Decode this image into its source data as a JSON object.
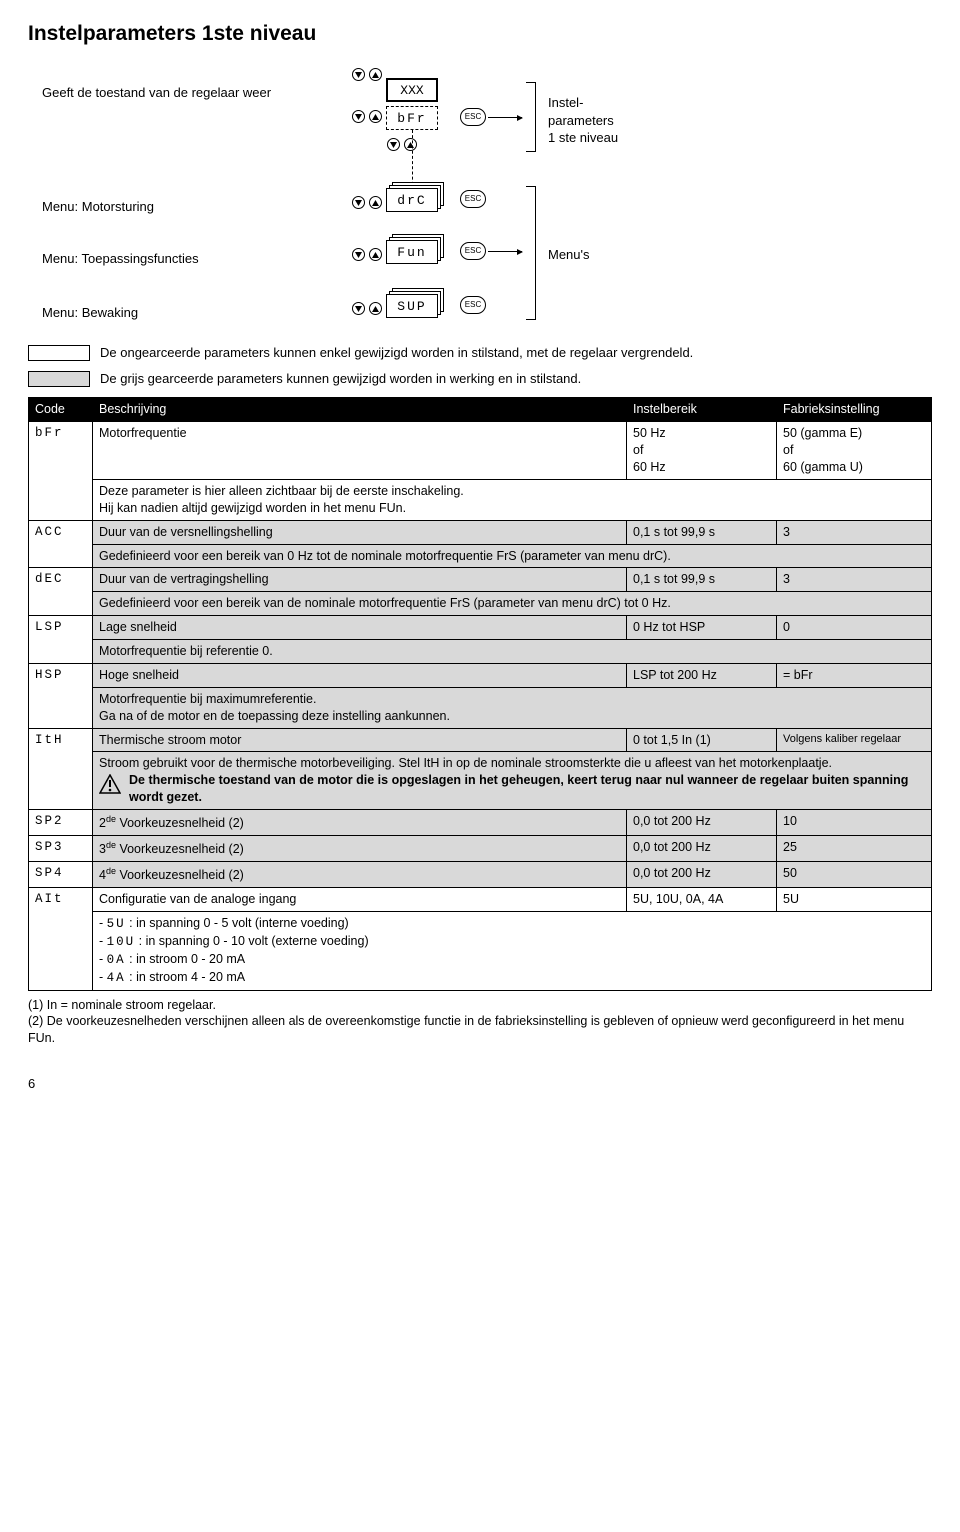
{
  "title": "Instelparameters 1ste niveau",
  "diagram": {
    "state_label": "Geeft de toestand van de regelaar weer",
    "xxx": "XXX",
    "bfr": "bFr",
    "menu_motor": "Menu: Motorsturing",
    "menu_app": "Menu: Toepassingsfuncties",
    "menu_mon": "Menu: Bewaking",
    "drc": "drC",
    "fun": "Fun",
    "sup": "SUP",
    "esc": "ESC",
    "bracket1_line1": "Instel-",
    "bracket1_line2": "parameters",
    "bracket1_line3": "1 ste niveau",
    "bracket2": "Menu's"
  },
  "legend": {
    "white": "De ongearceerde parameters kunnen enkel gewijzigd worden in stilstand, met de regelaar vergrendeld.",
    "grey": "De grijs gearceerde parameters kunnen gewijzigd worden in werking en in stilstand."
  },
  "table": {
    "headers": {
      "code": "Code",
      "desc": "Beschrijving",
      "range": "Instelbereik",
      "factory": "Fabrieksinstelling"
    },
    "rows": [
      {
        "code": "bFr",
        "desc": "Motorfrequentie",
        "range": "50 Hz\nof\n60 Hz",
        "factory": "50 (gamma E)\nof\n60 (gamma U)",
        "grey": false,
        "expl": "Deze parameter is hier alleen zichtbaar bij de eerste inschakeling.\nHij kan nadien altijd gewijzigd worden in het menu FUn."
      },
      {
        "code": "ACC",
        "desc": "Duur van de versnellingshelling",
        "range": "0,1 s tot 99,9 s",
        "factory": "3",
        "grey": true,
        "expl": "Gedefinieerd voor een bereik van 0 Hz tot de nominale motorfrequentie FrS (parameter van menu drC)."
      },
      {
        "code": "dEC",
        "desc": "Duur van de vertragingshelling",
        "range": "0,1 s tot 99,9 s",
        "factory": "3",
        "grey": true,
        "expl": "Gedefinieerd voor een bereik van de nominale motorfrequentie FrS (parameter van menu drC) tot 0 Hz."
      },
      {
        "code": "LSP",
        "desc": "Lage snelheid",
        "range": "0 Hz tot HSP",
        "factory": "0",
        "grey": true,
        "expl": "Motorfrequentie bij referentie 0."
      },
      {
        "code": "HSP",
        "desc": "Hoge snelheid",
        "range": "LSP tot 200 Hz",
        "factory": "= bFr",
        "grey": true,
        "expl": "Motorfrequentie bij maximumreferentie.\nGa na of de motor en de toepassing deze instelling aankunnen."
      },
      {
        "code": "ItH",
        "desc": "Thermische stroom motor",
        "range": "0 tot 1,5 In (1)",
        "factory": "Volgens kaliber regelaar",
        "grey": true,
        "expl_html": true
      },
      {
        "code": "SP2",
        "desc": "2de Voorkeuzesnelheid (2)",
        "sup": "de",
        "range": "0,0 tot 200 Hz",
        "factory": "10",
        "grey": true
      },
      {
        "code": "SP3",
        "desc": "3de Voorkeuzesnelheid (2)",
        "sup": "de",
        "range": "0,0 tot 200 Hz",
        "factory": "25",
        "grey": true
      },
      {
        "code": "SP4",
        "desc": "4de Voorkeuzesnelheid (2)",
        "sup": "de",
        "range": "0,0 tot 200 Hz",
        "factory": "50",
        "grey": true
      },
      {
        "code": "AIt",
        "desc": "Configuratie van de analoge ingang",
        "range": "5U, 10U, 0A, 4A",
        "factory": "5U",
        "grey": false,
        "expl_ait": true
      }
    ],
    "ith_text": {
      "l1": "Stroom gebruikt voor de thermische motorbeveiliging. Stel ItH in op de nominale stroomsterkte die u afleest van het motorkenplaatje.",
      "warn1": "De thermische toestand van de motor die is opgeslagen in het geheugen, keert terug naar nul wanneer de regelaar buiten spanning wordt gezet."
    },
    "ait_lines": {
      "a": "5U",
      "a_txt": " : in spanning 0 - 5 volt (interne voeding)",
      "b": "10U",
      "b_txt": " : in spanning 0 - 10 volt (externe voeding)",
      "c": "0A",
      "c_txt": " : in stroom 0 - 20 mA",
      "d": "4A",
      "d_txt": " : in stroom 4 - 20 mA"
    }
  },
  "footnotes": {
    "f1": "(1) In = nominale stroom regelaar.",
    "f2": "(2) De voorkeuzesnelheden verschijnen alleen als de overeenkomstige functie in de fabrieksinstelling is gebleven of opnieuw werd geconfigureerd in het menu FUn."
  },
  "page": "6"
}
